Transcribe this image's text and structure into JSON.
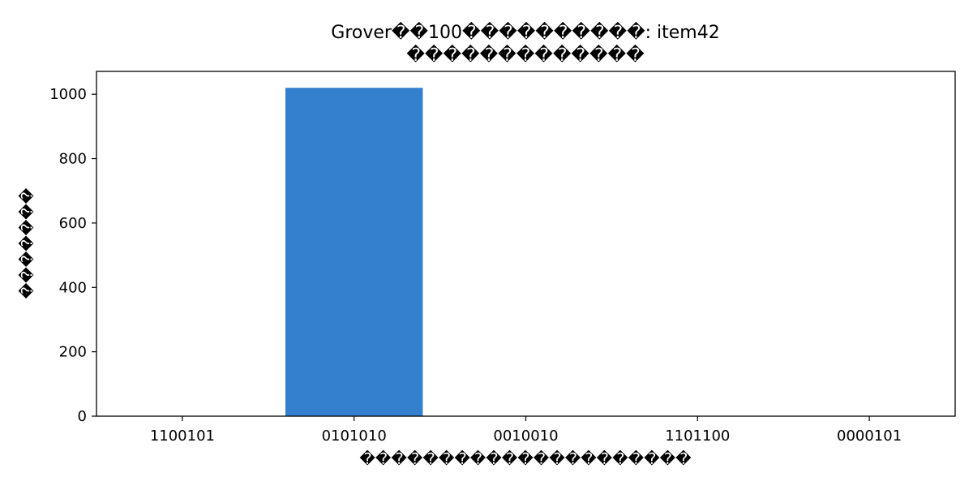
{
  "chart_data": {
    "type": "bar",
    "title": "Grover��100����������: item42",
    "subtitle": "�������������",
    "xlabel": "���������������������",
    "ylabel": "�������",
    "categories": [
      "1100101",
      "0101010",
      "0010010",
      "1101100",
      "0000101"
    ],
    "values": [
      1,
      1020,
      1,
      1,
      1
    ],
    "ylim": [
      0,
      1071
    ],
    "yticks": [
      0,
      200,
      400,
      600,
      800,
      1000
    ],
    "grid": false,
    "legend": "none",
    "bar_color": "#3480CF"
  }
}
